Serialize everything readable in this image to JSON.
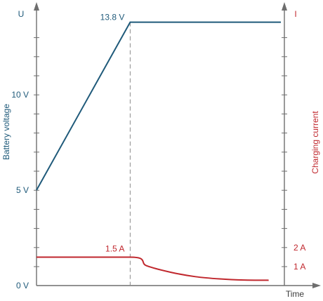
{
  "chart_data": {
    "type": "line",
    "left_axis": {
      "symbol": "U",
      "label": "Battery voltage",
      "tick_labels": [
        "0 V",
        "5 V",
        "10 V"
      ],
      "tick_values": [
        0,
        5,
        10
      ],
      "range": [
        0,
        13.8
      ]
    },
    "right_axis": {
      "symbol": "I",
      "label": "Charging current",
      "tick_labels": [
        "1 A",
        "2 A"
      ],
      "tick_values": [
        1,
        2
      ]
    },
    "x_axis": {
      "label": "Time"
    },
    "series": [
      {
        "name": "Battery voltage",
        "axis": "left",
        "color": "#1f5a7a",
        "x": [
          0,
          0.3833,
          1
        ],
        "y": [
          5,
          13.8,
          13.8
        ]
      },
      {
        "name": "Charging current",
        "axis": "right",
        "color": "#c0272d",
        "x": [
          0,
          0.3833,
          0.45,
          0.55,
          0.65,
          0.75,
          0.85,
          0.95
        ],
        "y": [
          1.5,
          1.5,
          1.05,
          0.7,
          0.47,
          0.35,
          0.29,
          0.28
        ]
      }
    ],
    "annotations": [
      {
        "text": "13.8 V",
        "series": "Battery voltage"
      },
      {
        "text": "1.5 A",
        "series": "Charging current"
      }
    ],
    "grid": false,
    "legend": "none"
  },
  "colors": {
    "voltage": "#1f5a7a",
    "current": "#c0272d",
    "axis": "#6e6e6e",
    "divider": "#8a8a8a"
  }
}
